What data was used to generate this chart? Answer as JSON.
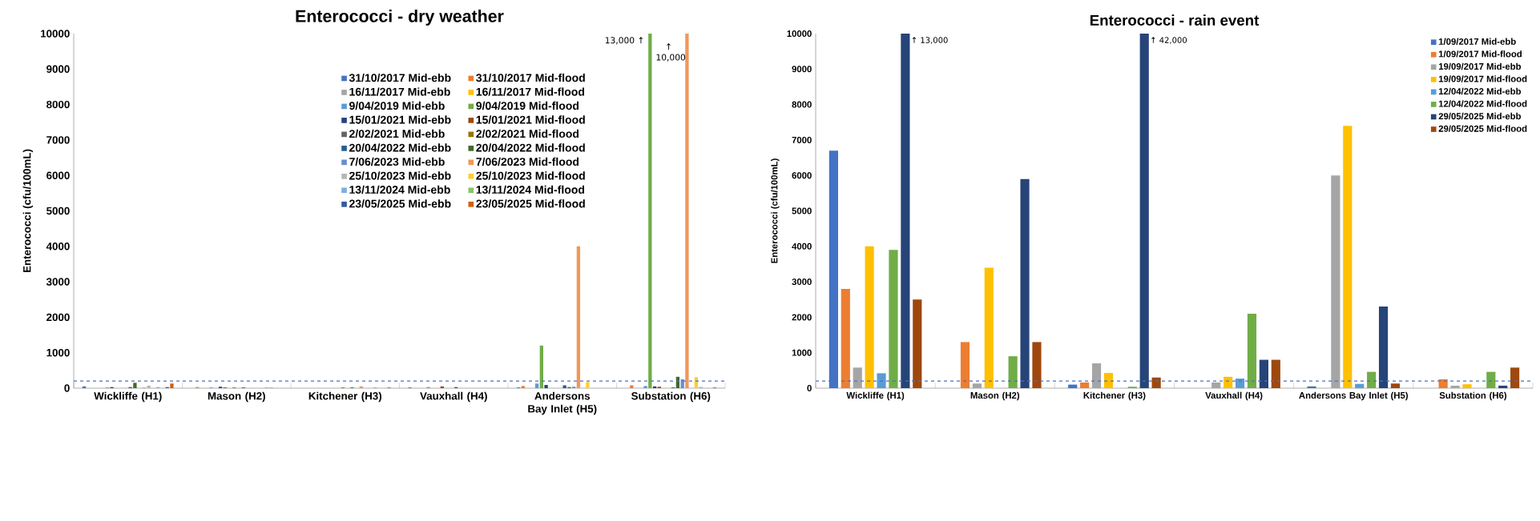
{
  "chart_data": [
    {
      "type": "bar",
      "title": "Enterococci - dry weather",
      "ylabel": "Enterococci (cfu/100mL)",
      "categories": [
        "Wickliffe (H1)",
        "Mason (H2)",
        "Kitchener (H3)",
        "Vauxhall (H4)",
        "Andersons Bay Inlet (H5)",
        "Substation (H6)"
      ],
      "ylim": [
        0,
        10000
      ],
      "yticks": [
        0,
        1000,
        2000,
        3000,
        4000,
        5000,
        6000,
        7000,
        8000,
        9000,
        10000
      ],
      "legend": "top",
      "series": [
        {
          "name": "31/10/2017 Mid-ebb",
          "color": "#4472c4",
          "values": [
            50,
            null,
            null,
            20,
            20,
            null
          ]
        },
        {
          "name": "31/10/2017 Mid-flood",
          "color": "#ed7d31",
          "values": [
            null,
            30,
            null,
            null,
            60,
            80
          ]
        },
        {
          "name": "16/11/2017 Mid-ebb",
          "color": "#a5a5a5",
          "values": [
            null,
            null,
            null,
            null,
            null,
            null
          ]
        },
        {
          "name": "16/11/2017 Mid-flood",
          "color": "#ffc000",
          "values": [
            null,
            null,
            null,
            null,
            null,
            null
          ]
        },
        {
          "name": "9/04/2019 Mid-ebb",
          "color": "#5b9bd5",
          "values": [
            null,
            20,
            null,
            30,
            130,
            60
          ]
        },
        {
          "name": "9/04/2019 Mid-flood",
          "color": "#70ad47",
          "values": [
            20,
            null,
            null,
            null,
            1200,
            10000
          ]
        },
        {
          "name": "15/01/2021 Mid-ebb",
          "color": "#264478",
          "values": [
            30,
            40,
            null,
            null,
            90,
            50
          ]
        },
        {
          "name": "15/01/2021 Mid-flood",
          "color": "#9e480e",
          "values": [
            null,
            20,
            null,
            50,
            null,
            40
          ]
        },
        {
          "name": "2/02/2021 Mid-ebb",
          "color": "#636363",
          "values": [
            null,
            null,
            null,
            null,
            null,
            null
          ]
        },
        {
          "name": "2/02/2021 Mid-flood",
          "color": "#997300",
          "values": [
            null,
            20,
            20,
            null,
            null,
            null
          ]
        },
        {
          "name": "20/04/2022 Mid-ebb",
          "color": "#255e91",
          "values": [
            30,
            null,
            null,
            30,
            80,
            20
          ]
        },
        {
          "name": "20/04/2022 Mid-flood",
          "color": "#43682b",
          "values": [
            150,
            20,
            20,
            null,
            30,
            320
          ]
        },
        {
          "name": "7/06/2023 Mid-ebb",
          "color": "#698ed0",
          "values": [
            null,
            null,
            null,
            null,
            40,
            250
          ]
        },
        {
          "name": "7/06/2023 Mid-flood",
          "color": "#f1975a",
          "values": [
            20,
            null,
            50,
            null,
            4000,
            10000
          ]
        },
        {
          "name": "25/10/2023 Mid-ebb",
          "color": "#b7b7b7",
          "values": [
            70,
            null,
            null,
            null,
            null,
            null
          ]
        },
        {
          "name": "25/10/2023 Mid-flood",
          "color": "#ffcd33",
          "values": [
            null,
            null,
            null,
            null,
            170,
            310
          ]
        },
        {
          "name": "13/11/2024 Mid-ebb",
          "color": "#7cafdd",
          "values": [
            30,
            20,
            20,
            null,
            null,
            30
          ]
        },
        {
          "name": "13/11/2024 Mid-flood",
          "color": "#8cc168",
          "values": [
            null,
            20,
            null,
            null,
            null,
            null
          ]
        },
        {
          "name": "23/05/2025 Mid-ebb",
          "color": "#335aa1",
          "values": [
            30,
            null,
            null,
            null,
            null,
            null
          ]
        },
        {
          "name": "23/05/2025 Mid-flood",
          "color": "#d26012",
          "values": [
            130,
            null,
            20,
            null,
            null,
            20
          ]
        }
      ],
      "ref_lines": [
        {
          "axis": "y",
          "value": 200,
          "color": "#4472c4",
          "line_style": "dashed"
        }
      ],
      "annotations": [
        "13,000 ↑",
        "↑ 10,000"
      ]
    },
    {
      "type": "bar",
      "title": "Enterococci - rain event",
      "ylabel": "Enterococci (cfu/100mL)",
      "categories": [
        "Wickliffe (H1)",
        "Mason (H2)",
        "Kitchener (H3)",
        "Vauxhall (H4)",
        "Andersons Bay Inlet (H5)",
        "Substation (H6)"
      ],
      "ylim": [
        0,
        10000
      ],
      "yticks": [
        0,
        1000,
        2000,
        3000,
        4000,
        5000,
        6000,
        7000,
        8000,
        9000,
        10000
      ],
      "legend": "top right",
      "series": [
        {
          "name": "1/09/2017 Mid-ebb",
          "color": "#4472c4",
          "values": [
            6700,
            null,
            100,
            null,
            50,
            null
          ]
        },
        {
          "name": "1/09/2017 Mid-flood",
          "color": "#ed7d31",
          "values": [
            2800,
            1300,
            160,
            null,
            null,
            250
          ]
        },
        {
          "name": "19/09/2017 Mid-ebb",
          "color": "#a5a5a5",
          "values": [
            580,
            130,
            700,
            160,
            6000,
            70
          ]
        },
        {
          "name": "19/09/2017 Mid-flood",
          "color": "#ffc000",
          "values": [
            4000,
            3400,
            430,
            320,
            7400,
            110
          ]
        },
        {
          "name": "12/04/2022 Mid-ebb",
          "color": "#5b9bd5",
          "values": [
            420,
            null,
            null,
            270,
            120,
            null
          ]
        },
        {
          "name": "12/04/2022 Mid-flood",
          "color": "#70ad47",
          "values": [
            3900,
            900,
            40,
            2100,
            460,
            460
          ]
        },
        {
          "name": "29/05/2025 Mid-ebb",
          "color": "#264478",
          "values": [
            10000,
            5900,
            10000,
            800,
            2300,
            70
          ]
        },
        {
          "name": "29/05/2025 Mid-flood",
          "color": "#9e480e",
          "values": [
            2500,
            1300,
            300,
            800,
            130,
            580
          ]
        }
      ],
      "ref_lines": [
        {
          "axis": "y",
          "value": 200,
          "color": "#4472c4",
          "line_style": "dashed"
        }
      ],
      "annotations": [
        "↑ 13,000",
        "↑ 42,000"
      ]
    }
  ]
}
